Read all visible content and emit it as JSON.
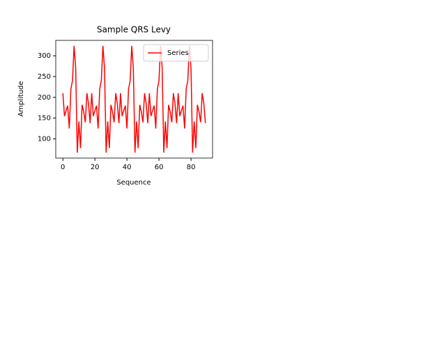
{
  "chart_data": {
    "type": "line",
    "title": "Sample QRS Levy",
    "x_label": "Sequence",
    "y_label": "Amplitude",
    "x": [
      0,
      1,
      2,
      3,
      4,
      5,
      6,
      7,
      8,
      9,
      10,
      11,
      12,
      13,
      14,
      15,
      16,
      17,
      18,
      19,
      20,
      21,
      22,
      23,
      24,
      25,
      26,
      27,
      28,
      29,
      30,
      31,
      32,
      33,
      34,
      35,
      36,
      37,
      38,
      39,
      40,
      41,
      42,
      43,
      44,
      45,
      46,
      47,
      48,
      49,
      50,
      51,
      52,
      53,
      54,
      55,
      56,
      57,
      58,
      59,
      60,
      61,
      62,
      63,
      64,
      65,
      66,
      67,
      68,
      69,
      70,
      71,
      72,
      73,
      74,
      75,
      76,
      77,
      78,
      79,
      80,
      81,
      82,
      83,
      84,
      85,
      86,
      87,
      88,
      89
    ],
    "series": [
      {
        "name": "Series",
        "color": "#ff0000",
        "values": [
          210,
          155,
          168,
          180,
          125,
          220,
          240,
          324,
          270,
          67,
          142,
          78,
          182,
          165,
          140,
          210,
          185,
          138,
          210,
          155,
          168,
          180,
          125,
          220,
          240,
          324,
          270,
          67,
          142,
          78,
          182,
          165,
          140,
          210,
          185,
          138,
          210,
          155,
          168,
          180,
          125,
          220,
          240,
          324,
          270,
          67,
          142,
          78,
          182,
          165,
          140,
          210,
          185,
          138,
          210,
          155,
          168,
          180,
          125,
          220,
          240,
          324,
          270,
          67,
          142,
          78,
          182,
          165,
          140,
          210,
          185,
          138,
          210,
          155,
          168,
          180,
          125,
          220,
          240,
          324,
          270,
          67,
          142,
          78,
          182,
          165,
          140,
          210,
          185,
          138
        ]
      }
    ],
    "xlim": [
      -4.45,
      93.45
    ],
    "ylim": [
      54,
      337
    ],
    "xticks": [
      0,
      20,
      40,
      60,
      80
    ],
    "yticks": [
      100,
      150,
      200,
      250,
      300
    ],
    "legend": "upper right"
  }
}
